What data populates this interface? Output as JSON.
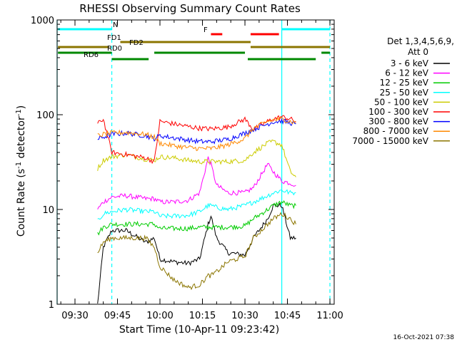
{
  "chart_data": {
    "type": "line",
    "title": "RHESSI Observing Summary Count Rates",
    "xlabel": "Start Time (10-Apr-11 09:23:42)",
    "ylabel": "Count Rate (s^-1 detector^-1)",
    "ylabel_parts": {
      "main": "Count Rate (s",
      "exp1": "-1",
      "mid": " detector",
      "exp2": "-1",
      "end": ")"
    },
    "y_scale": "log",
    "ylim": [
      1,
      1000
    ],
    "y_ticks": [
      {
        "value": 1,
        "label": "1"
      },
      {
        "value": 10,
        "label": "10"
      },
      {
        "value": 100,
        "label": "100"
      },
      {
        "value": 1000,
        "label": "1000"
      }
    ],
    "x_ticks": [
      {
        "value": "09:30",
        "label": "09:30"
      },
      {
        "value": "09:45",
        "label": "09:45"
      },
      {
        "value": "10:00",
        "label": "10:00"
      },
      {
        "value": "10:15",
        "label": "10:15"
      },
      {
        "value": "10:30",
        "label": "10:30"
      },
      {
        "value": "10:45",
        "label": "10:45"
      },
      {
        "value": "11:00",
        "label": "11:00"
      }
    ],
    "xlim": [
      "09:23:42",
      "11:01:30"
    ],
    "detector_info": [
      "Det 1,3,4,5,6,9,",
      "Att 0"
    ],
    "grid": false,
    "legend_position": "right",
    "series": [
      {
        "name": "3 - 6 keV",
        "color": "#000000",
        "points": [
          [
            "09:38",
            1.0
          ],
          [
            "09:40",
            4
          ],
          [
            "09:43",
            6
          ],
          [
            "09:48",
            6
          ],
          [
            "09:55",
            4.5
          ],
          [
            "09:58",
            5
          ],
          [
            "10:00",
            3
          ],
          [
            "10:05",
            2.8
          ],
          [
            "10:10",
            2.7
          ],
          [
            "10:14",
            3
          ],
          [
            "10:17",
            7
          ],
          [
            "10:18",
            8.5
          ],
          [
            "10:20",
            5
          ],
          [
            "10:24",
            3.5
          ],
          [
            "10:30",
            3.3
          ],
          [
            "10:33",
            5
          ],
          [
            "10:38",
            8
          ],
          [
            "10:40",
            11
          ],
          [
            "10:43",
            11
          ],
          [
            "10:46",
            5
          ],
          [
            "10:48",
            5
          ]
        ]
      },
      {
        "name": "6 - 12 keV",
        "color": "#ff00ff",
        "points": [
          [
            "09:38",
            10
          ],
          [
            "09:40",
            12
          ],
          [
            "09:43",
            13.5
          ],
          [
            "09:48",
            14
          ],
          [
            "09:55",
            13
          ],
          [
            "09:58",
            13
          ],
          [
            "10:00",
            12
          ],
          [
            "10:05",
            12
          ],
          [
            "10:10",
            12.5
          ],
          [
            "10:14",
            15
          ],
          [
            "10:17",
            35
          ],
          [
            "10:18",
            30
          ],
          [
            "10:20",
            18
          ],
          [
            "10:24",
            15
          ],
          [
            "10:30",
            15
          ],
          [
            "10:33",
            17
          ],
          [
            "10:38",
            30
          ],
          [
            "10:40",
            25
          ],
          [
            "10:43",
            20
          ],
          [
            "10:46",
            19
          ],
          [
            "10:48",
            18
          ]
        ]
      },
      {
        "name": "12 - 25 keV",
        "color": "#00cc00",
        "points": [
          [
            "09:38",
            5.5
          ],
          [
            "09:40",
            6.5
          ],
          [
            "09:43",
            7
          ],
          [
            "09:48",
            7
          ],
          [
            "09:55",
            7
          ],
          [
            "09:58",
            7
          ],
          [
            "10:00",
            6.3
          ],
          [
            "10:05",
            6.3
          ],
          [
            "10:10",
            6.3
          ],
          [
            "10:14",
            6.5
          ],
          [
            "10:17",
            6.5
          ],
          [
            "10:18",
            6.5
          ],
          [
            "10:20",
            6.5
          ],
          [
            "10:24",
            6.5
          ],
          [
            "10:30",
            6.7
          ],
          [
            "10:33",
            8
          ],
          [
            "10:38",
            10
          ],
          [
            "10:40",
            11
          ],
          [
            "10:43",
            12
          ],
          [
            "10:46",
            11
          ],
          [
            "10:48",
            11
          ]
        ]
      },
      {
        "name": "25 - 50 keV",
        "color": "#00ffff",
        "points": [
          [
            "09:38",
            7.5
          ],
          [
            "09:40",
            9
          ],
          [
            "09:43",
            9.5
          ],
          [
            "09:48",
            10
          ],
          [
            "09:55",
            9.5
          ],
          [
            "09:58",
            9.5
          ],
          [
            "10:00",
            8.5
          ],
          [
            "10:05",
            8.5
          ],
          [
            "10:10",
            8.7
          ],
          [
            "10:14",
            9.5
          ],
          [
            "10:17",
            11
          ],
          [
            "10:18",
            11
          ],
          [
            "10:20",
            10.5
          ],
          [
            "10:24",
            10
          ],
          [
            "10:30",
            11
          ],
          [
            "10:33",
            12
          ],
          [
            "10:38",
            14
          ],
          [
            "10:40",
            15
          ],
          [
            "10:43",
            16
          ],
          [
            "10:46",
            15
          ],
          [
            "10:48",
            15
          ]
        ]
      },
      {
        "name": "50 - 100 keV",
        "color": "#cccc00",
        "points": [
          [
            "09:38",
            27
          ],
          [
            "09:40",
            33
          ],
          [
            "09:43",
            36
          ],
          [
            "09:48",
            38
          ],
          [
            "09:55",
            34
          ],
          [
            "09:58",
            33
          ],
          [
            "10:00",
            36
          ],
          [
            "10:05",
            35
          ],
          [
            "10:10",
            33
          ],
          [
            "10:14",
            32
          ],
          [
            "10:17",
            32
          ],
          [
            "10:18",
            32
          ],
          [
            "10:20",
            32
          ],
          [
            "10:24",
            32
          ],
          [
            "10:30",
            33
          ],
          [
            "10:33",
            40
          ],
          [
            "10:38",
            50
          ],
          [
            "10:40",
            52
          ],
          [
            "10:43",
            48
          ],
          [
            "10:46",
            25
          ],
          [
            "10:48",
            22
          ]
        ]
      },
      {
        "name": "100 - 300 keV",
        "color": "#ff0000",
        "points": [
          [
            "09:38",
            80
          ],
          [
            "09:40",
            90
          ],
          [
            "09:43",
            40
          ],
          [
            "09:48",
            38
          ],
          [
            "09:55",
            35
          ],
          [
            "09:58",
            32
          ],
          [
            "10:00",
            85
          ],
          [
            "10:05",
            80
          ],
          [
            "10:10",
            75
          ],
          [
            "10:14",
            72
          ],
          [
            "10:17",
            71
          ],
          [
            "10:18",
            71
          ],
          [
            "10:20",
            72
          ],
          [
            "10:24",
            74
          ],
          [
            "10:30",
            90
          ],
          [
            "10:33",
            70
          ],
          [
            "10:38",
            85
          ],
          [
            "10:40",
            90
          ],
          [
            "10:43",
            95
          ],
          [
            "10:46",
            90
          ],
          [
            "10:48",
            85
          ]
        ]
      },
      {
        "name": "300 - 800 keV",
        "color": "#0000ff",
        "points": [
          [
            "09:38",
            55
          ],
          [
            "09:40",
            58
          ],
          [
            "09:43",
            62
          ],
          [
            "09:48",
            64
          ],
          [
            "09:55",
            60
          ],
          [
            "09:58",
            56
          ],
          [
            "10:00",
            60
          ],
          [
            "10:05",
            57
          ],
          [
            "10:10",
            54
          ],
          [
            "10:14",
            52
          ],
          [
            "10:17",
            52
          ],
          [
            "10:18",
            52
          ],
          [
            "10:20",
            53
          ],
          [
            "10:24",
            55
          ],
          [
            "10:30",
            64
          ],
          [
            "10:33",
            70
          ],
          [
            "10:38",
            80
          ],
          [
            "10:40",
            84
          ],
          [
            "10:43",
            86
          ],
          [
            "10:46",
            82
          ],
          [
            "10:48",
            80
          ]
        ]
      },
      {
        "name": "800 - 7000 keV",
        "color": "#ff8800",
        "points": [
          [
            "09:38",
            60
          ],
          [
            "09:40",
            62
          ],
          [
            "09:43",
            64
          ],
          [
            "09:48",
            65
          ],
          [
            "09:55",
            62
          ],
          [
            "09:58",
            58
          ],
          [
            "10:00",
            50
          ],
          [
            "10:05",
            47
          ],
          [
            "10:10",
            45
          ],
          [
            "10:14",
            44
          ],
          [
            "10:17",
            44
          ],
          [
            "10:18",
            44
          ],
          [
            "10:20",
            45
          ],
          [
            "10:24",
            48
          ],
          [
            "10:30",
            56
          ],
          [
            "10:33",
            72
          ],
          [
            "10:38",
            85
          ],
          [
            "10:40",
            88
          ],
          [
            "10:43",
            90
          ],
          [
            "10:46",
            85
          ],
          [
            "10:48",
            82
          ]
        ]
      },
      {
        "name": "7000 - 15000 keV",
        "color": "#8b7500",
        "points": [
          [
            "09:38",
            3.5
          ],
          [
            "09:40",
            4.5
          ],
          [
            "09:43",
            5
          ],
          [
            "09:48",
            5
          ],
          [
            "09:55",
            5
          ],
          [
            "09:58",
            4
          ],
          [
            "10:00",
            2.5
          ],
          [
            "10:05",
            1.8
          ],
          [
            "10:10",
            1.5
          ],
          [
            "10:14",
            1.6
          ],
          [
            "10:17",
            2
          ],
          [
            "10:18",
            2
          ],
          [
            "10:20",
            2.2
          ],
          [
            "10:24",
            2.8
          ],
          [
            "10:30",
            3.2
          ],
          [
            "10:33",
            5
          ],
          [
            "10:38",
            7
          ],
          [
            "10:40",
            8
          ],
          [
            "10:43",
            9
          ],
          [
            "10:46",
            8
          ],
          [
            "10:48",
            7
          ]
        ]
      }
    ],
    "flag_bars": [
      {
        "label": "N",
        "color": "#00ffff",
        "segments": [
          [
            "09:24",
            "09:43"
          ],
          [
            "10:43",
            "11:00"
          ]
        ]
      },
      {
        "label": "F",
        "color": "#ff0000",
        "segments": [
          [
            "10:18",
            "10:22"
          ],
          [
            "10:32",
            "10:42"
          ]
        ]
      },
      {
        "label": "FD1",
        "color": "#8b7500",
        "segments": [
          [
            "09:46",
            "10:32"
          ]
        ]
      },
      {
        "label": "FD2",
        "color": "#8b7500",
        "segments": [
          [
            "09:24",
            "09:42"
          ],
          [
            "10:32",
            "11:00"
          ]
        ]
      },
      {
        "label": "RD0",
        "color": "#008800",
        "segments": [
          [
            "09:24",
            "09:43"
          ],
          [
            "09:58",
            "10:30"
          ],
          [
            "10:57",
            "11:00"
          ]
        ]
      },
      {
        "label": "RD6",
        "color": "#008800",
        "segments": [
          [
            "09:43",
            "09:56"
          ],
          [
            "10:31",
            "10:55"
          ]
        ]
      }
    ],
    "vertical_lines": [
      {
        "time": "09:23:42",
        "color": "#00ffff",
        "style": "solid"
      },
      {
        "time": "09:43",
        "color": "#00ffff",
        "style": "dashed"
      },
      {
        "time": "10:43",
        "color": "#00ffff",
        "style": "solid"
      },
      {
        "time": "11:00",
        "color": "#00ffff",
        "style": "dashed"
      }
    ],
    "footer_timestamp": "16-Oct-2021 07:38"
  }
}
